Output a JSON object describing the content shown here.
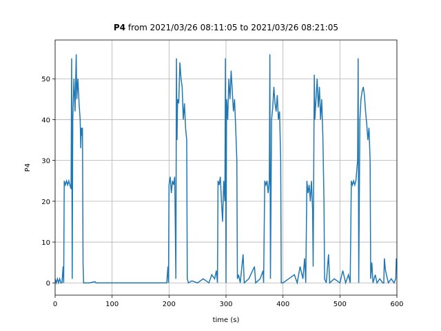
{
  "chart_data": {
    "type": "line",
    "title_bold": "P4",
    "title": "from 2021/03/26 08:11:05 to 2021/03/26 08:21:05",
    "xlabel": "time (s)",
    "ylabel": "P4",
    "color": "#1f77b4",
    "grid": true,
    "xlim": [
      0,
      600
    ],
    "xticks": [
      0,
      100,
      200,
      300,
      400,
      500,
      600
    ],
    "ylim": [
      -3,
      59.5
    ],
    "yticks": [
      0,
      10,
      20,
      30,
      40,
      50
    ],
    "x": [
      0,
      2,
      4,
      6,
      8,
      10,
      12,
      14,
      15,
      16,
      18,
      20,
      22,
      24,
      26,
      28,
      29,
      30,
      31,
      33,
      35,
      37,
      38,
      40,
      42,
      44,
      45,
      46,
      47,
      48,
      49,
      50,
      52,
      60,
      70,
      72,
      80,
      100,
      150,
      196,
      198,
      199,
      200,
      202,
      204,
      206,
      208,
      210,
      212,
      213,
      214,
      215,
      217,
      219,
      221,
      223,
      225,
      227,
      229,
      231,
      232,
      234,
      240,
      250,
      260,
      270,
      275,
      280,
      283,
      285,
      286,
      288,
      290,
      292,
      294,
      296,
      298,
      299,
      300,
      301,
      303,
      305,
      307,
      309,
      311,
      313,
      315,
      317,
      319,
      320,
      322,
      325,
      330,
      332,
      340,
      350,
      352,
      360,
      365,
      366,
      368,
      370,
      372,
      374,
      376,
      377,
      378,
      380,
      382,
      384,
      386,
      388,
      390,
      392,
      394,
      396,
      397,
      400,
      410,
      420,
      425,
      430,
      435,
      438,
      440,
      442,
      444,
      446,
      448,
      450,
      452,
      453,
      455,
      456,
      458,
      460,
      462,
      464,
      466,
      468,
      470,
      472,
      473,
      476,
      480,
      482,
      490,
      500,
      505,
      510,
      515,
      518,
      520,
      522,
      524,
      526,
      528,
      531,
      532,
      533,
      535,
      537,
      539,
      541,
      543,
      545,
      547,
      549,
      551,
      553,
      554,
      556,
      558,
      562,
      565,
      570,
      575,
      577,
      578,
      580,
      585,
      590,
      595,
      598,
      599,
      600
    ],
    "values": [
      1,
      0,
      1,
      0,
      1,
      0,
      0,
      4,
      0,
      25,
      24,
      25,
      24,
      25,
      24,
      23,
      55,
      1,
      40,
      50,
      42,
      56,
      45,
      50,
      44,
      40,
      33,
      38,
      36,
      38,
      5,
      0,
      0,
      0,
      0.3,
      0,
      0,
      0,
      0,
      0,
      4,
      0,
      24,
      26,
      22,
      25,
      24,
      26,
      1,
      55,
      35,
      45,
      44,
      54,
      50,
      48,
      40,
      44,
      38,
      35,
      1,
      0,
      0.5,
      0,
      1,
      0,
      2,
      1,
      3,
      0,
      25,
      24,
      26,
      20,
      15,
      25,
      20,
      55,
      0,
      45,
      40,
      50,
      45,
      52,
      47,
      42,
      45,
      38,
      30,
      1,
      2,
      0,
      7,
      0,
      1,
      4,
      0,
      1,
      3,
      0,
      25,
      24,
      25,
      22,
      25,
      56,
      1,
      40,
      43,
      48,
      44,
      42,
      46,
      40,
      42,
      30,
      0,
      0,
      1,
      2,
      0,
      4,
      1,
      6,
      0,
      25,
      22,
      24,
      20,
      25,
      18,
      4,
      51,
      40,
      45,
      50,
      43,
      48,
      40,
      45,
      36,
      20,
      1,
      0,
      7,
      0,
      1,
      0,
      3,
      0,
      2,
      0,
      25,
      24,
      25,
      24,
      25,
      30,
      55,
      0,
      40,
      45,
      47,
      48,
      46,
      42,
      39,
      35,
      38,
      30,
      1,
      5,
      0,
      2,
      0,
      1,
      0,
      0,
      6,
      3,
      0,
      1,
      0,
      1,
      6,
      4
    ]
  }
}
